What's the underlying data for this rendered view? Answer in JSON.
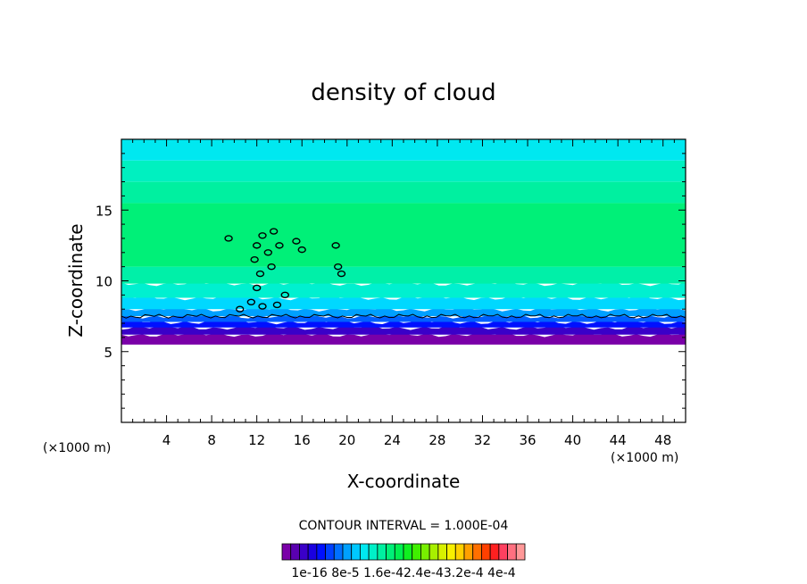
{
  "chart_data": {
    "type": "heatmap",
    "title": "density of cloud",
    "xlabel": "X-coordinate",
    "ylabel": "Z-coordinate",
    "x_unit_left": "(×1000 m)",
    "x_unit_right": "(×1000 m)",
    "xlim": [
      0,
      50
    ],
    "ylim": [
      0,
      20
    ],
    "x_ticks": [
      "4",
      "8",
      "12",
      "16",
      "20",
      "24",
      "28",
      "32",
      "36",
      "40",
      "44",
      "48"
    ],
    "y_ticks": [
      "5",
      "10",
      "15"
    ],
    "contour_interval_text": "CONTOUR INTERVAL = 1.000E-04",
    "colorbar_labels": [
      "1e-16",
      "8e-5",
      "1.6e-4",
      "2.4e-4",
      "3.2e-4",
      "4e-4"
    ],
    "colorbar_label_text": "1e-16  8e-5 1.6e-42.4e-43.2e-4 4e-4",
    "colorbar_colors": [
      "#7a00a8",
      "#5a00b0",
      "#3a00c8",
      "#1a00e0",
      "#0010ff",
      "#0040ff",
      "#0070ff",
      "#00a0ff",
      "#00c8ff",
      "#00e8f0",
      "#00f0c8",
      "#00f0a0",
      "#00f078",
      "#00f050",
      "#10f020",
      "#40f000",
      "#78f000",
      "#a8f000",
      "#d8f000",
      "#f8f000",
      "#ffd000",
      "#ffa000",
      "#ff7000",
      "#ff4000",
      "#ff2020",
      "#ff4060",
      "#ff7080",
      "#ff9898"
    ],
    "layers": [
      {
        "z_from": 5.5,
        "z_to": 6.2,
        "color": "#7a00a8"
      },
      {
        "z_from": 6.2,
        "z_to": 6.7,
        "color": "#3a00c8"
      },
      {
        "z_from": 6.7,
        "z_to": 7.1,
        "color": "#0010ff"
      },
      {
        "z_from": 7.1,
        "z_to": 7.5,
        "color": "#0060ff"
      },
      {
        "z_from": 7.5,
        "z_to": 8.0,
        "color": "#00a0ff"
      },
      {
        "z_from": 8.0,
        "z_to": 8.8,
        "color": "#00d8ff"
      },
      {
        "z_from": 8.8,
        "z_to": 9.8,
        "color": "#00f0d0"
      },
      {
        "z_from": 9.8,
        "z_to": 11.0,
        "color": "#00f0a8"
      },
      {
        "z_from": 11.0,
        "z_to": 15.5,
        "color": "#00f078"
      },
      {
        "z_from": 15.5,
        "z_to": 17.0,
        "color": "#00f0a0"
      },
      {
        "z_from": 17.0,
        "z_to": 18.5,
        "color": "#00f0c0"
      },
      {
        "z_from": 18.5,
        "z_to": 20.0,
        "color": "#00e8f0"
      }
    ],
    "contour_line_z": 7.5,
    "contour_blobs": [
      {
        "x": 12.0,
        "z": 12.5
      },
      {
        "x": 12.5,
        "z": 13.2
      },
      {
        "x": 13.0,
        "z": 12.0
      },
      {
        "x": 13.5,
        "z": 13.5
      },
      {
        "x": 11.8,
        "z": 11.5
      },
      {
        "x": 12.3,
        "z": 10.5
      },
      {
        "x": 12.0,
        "z": 9.5
      },
      {
        "x": 11.5,
        "z": 8.5
      },
      {
        "x": 12.5,
        "z": 8.2
      },
      {
        "x": 13.3,
        "z": 11.0
      },
      {
        "x": 14.0,
        "z": 12.5
      },
      {
        "x": 10.5,
        "z": 8.0
      },
      {
        "x": 9.5,
        "z": 13.0
      },
      {
        "x": 15.5,
        "z": 12.8
      },
      {
        "x": 16.0,
        "z": 12.2
      },
      {
        "x": 19.0,
        "z": 12.5
      },
      {
        "x": 19.2,
        "z": 11.0
      },
      {
        "x": 19.5,
        "z": 10.5
      },
      {
        "x": 14.5,
        "z": 9.0
      },
      {
        "x": 13.8,
        "z": 8.3
      }
    ]
  }
}
